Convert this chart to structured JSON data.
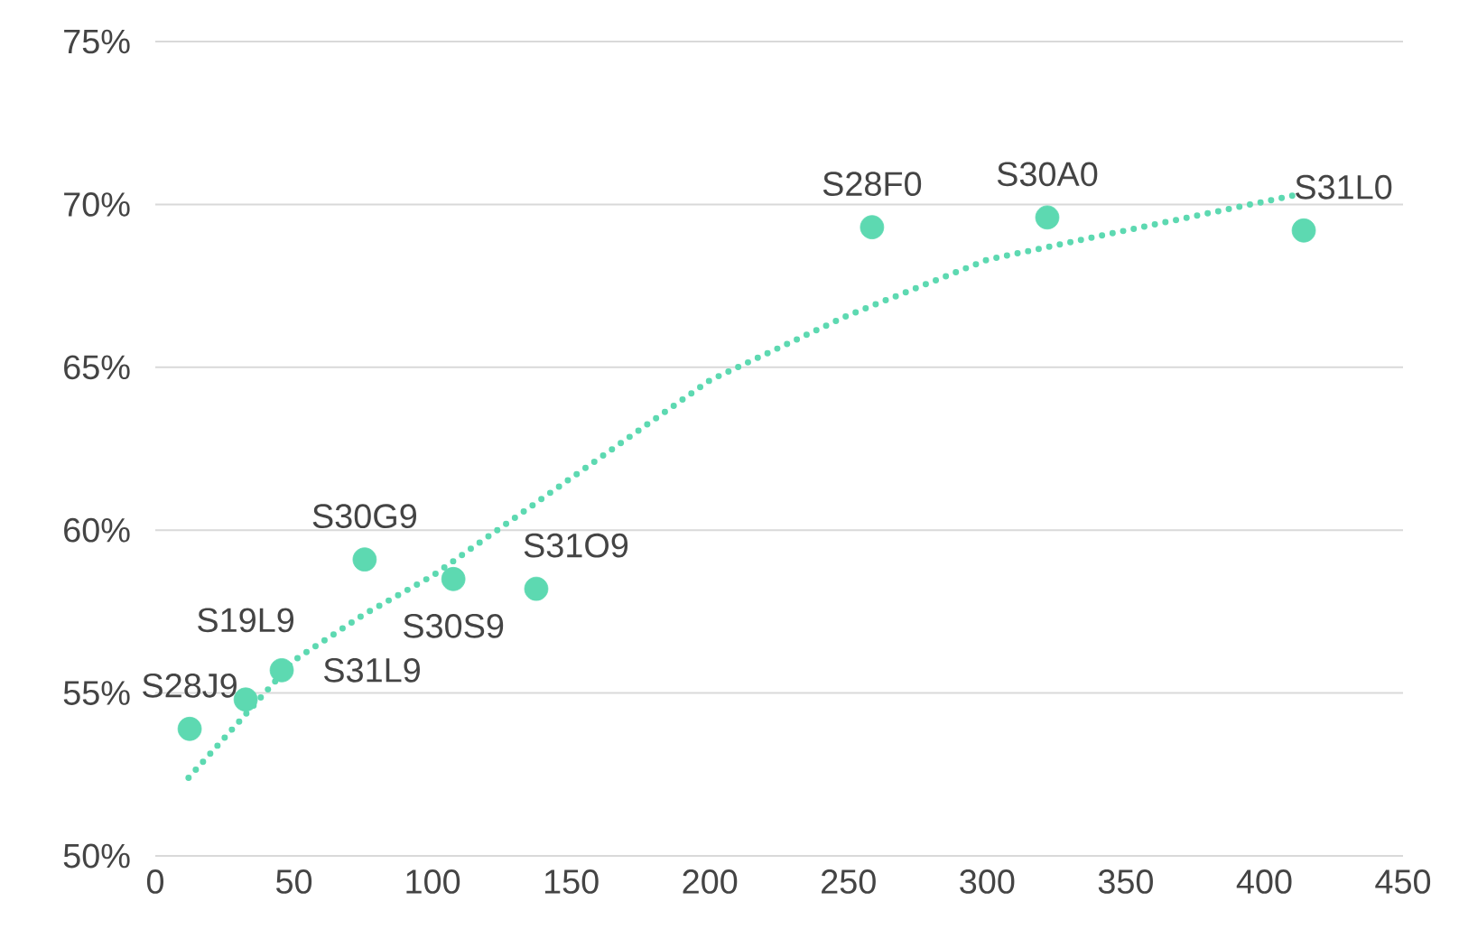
{
  "chart_data": {
    "type": "scatter",
    "series": [
      {
        "color": "#5dd9b1",
        "marker": "circle",
        "x": [
          12.4,
          32.6,
          45.6,
          75.5,
          107.5,
          137.4,
          258.5,
          321.7,
          414.2
        ],
        "values": [
          53.9,
          54.8,
          55.7,
          59.1,
          58.5,
          58.2,
          69.3,
          69.6,
          69.2
        ]
      },
      {
        "type": "line",
        "color": "#5dd9b1",
        "line_style": "dotted",
        "marker": "none",
        "x": [
          12,
          30,
          50,
          75,
          100,
          150,
          200,
          250,
          300,
          350,
          412
        ],
        "values": [
          52.4,
          54.1,
          56.0,
          57.4,
          58.6,
          61.6,
          64.6,
          66.6,
          68.3,
          69.2,
          70.3
        ]
      }
    ],
    "annotations": [
      {
        "text": "S28J9",
        "x": 12.4,
        "y": 53.9
      },
      {
        "text": "S19L9",
        "x": 32.6,
        "y": 54.8
      },
      {
        "text": "S31L9",
        "x": 45.6,
        "y": 55.7
      },
      {
        "text": "S30G9",
        "x": 75.5,
        "y": 59.1
      },
      {
        "text": "S30S9",
        "x": 107.5,
        "y": 58.5
      },
      {
        "text": "S31O9",
        "x": 137.4,
        "y": 58.2
      },
      {
        "text": "S28F0",
        "x": 258.5,
        "y": 69.3
      },
      {
        "text": "S30A0",
        "x": 321.7,
        "y": 69.6
      },
      {
        "text": "S31L0",
        "x": 414.2,
        "y": 69.2
      }
    ],
    "xlim": [
      0,
      450
    ],
    "xticks": [
      0,
      50,
      100,
      150,
      200,
      250,
      300,
      350,
      400,
      450
    ],
    "ylim": [
      50,
      75
    ],
    "yticks": [
      {
        "value": 50,
        "label": "50%"
      },
      {
        "value": 55,
        "label": "55%"
      },
      {
        "value": 60,
        "label": "60%"
      },
      {
        "value": 65,
        "label": "65%"
      },
      {
        "value": 70,
        "label": "70%"
      },
      {
        "value": 75,
        "label": "75%"
      }
    ],
    "grid": "y"
  }
}
